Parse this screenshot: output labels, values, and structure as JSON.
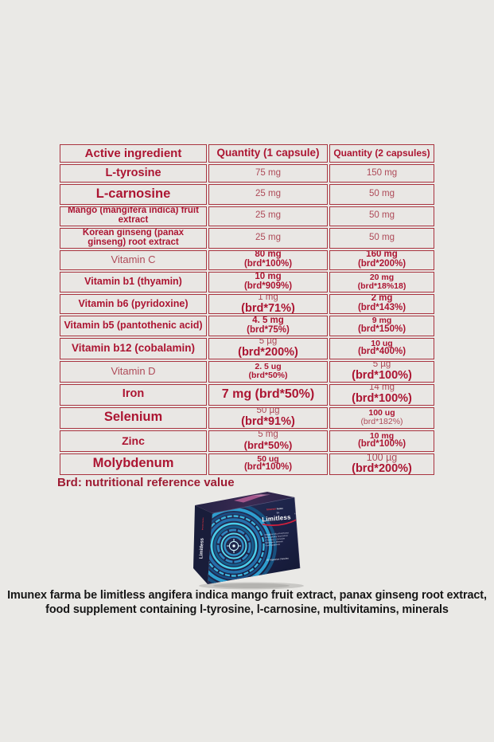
{
  "colors": {
    "table_border_red": "#a93440",
    "table_text_strong": "#ac1532",
    "table_text_soft": "#ae4a58",
    "caption_black": "#161616",
    "box_navy": "#1c2142",
    "box_circle_blue": "#2e9ecf",
    "page_bg": "#eae9e6"
  },
  "table": {
    "headers": [
      "Active ingredient",
      "Quantity (1 capsule)",
      "Quantity (2 capsules)"
    ],
    "rows": [
      {
        "name": "L-tyrosine",
        "name_style": "n-lg",
        "q1": [
          {
            "t": "75 mg",
            "s": "reg-sm"
          }
        ],
        "q2": [
          {
            "t": "150 mg",
            "s": "reg-sm"
          }
        ]
      },
      {
        "name": "L-carnosine",
        "name_style": "n-xl",
        "q1": [
          {
            "t": "25 mg",
            "s": "reg-sm"
          }
        ],
        "q2": [
          {
            "t": "50 mg",
            "s": "reg-sm"
          }
        ]
      },
      {
        "name": "Mango (mangifera indica) fruit extract",
        "name_style": "n-sm",
        "q1": [
          {
            "t": "25 mg",
            "s": "reg-sm"
          }
        ],
        "q2": [
          {
            "t": "50 mg",
            "s": "reg-sm"
          }
        ]
      },
      {
        "name": "Korean ginseng (panax ginseng) root extract",
        "name_style": "n-sm",
        "q1": [
          {
            "t": "25 mg",
            "s": "reg-sm"
          }
        ],
        "q2": [
          {
            "t": "50 mg",
            "s": "reg-sm"
          }
        ]
      },
      {
        "name": "Vitamin C",
        "name_style": "n-reg",
        "q1": [
          {
            "t": "80 mg",
            "s": "bold-sm"
          },
          {
            "t": "(brd*100%)",
            "s": "bold-sm"
          }
        ],
        "q2": [
          {
            "t": "160 mg",
            "s": "bold-sm"
          },
          {
            "t": "(brd*200%)",
            "s": "bold-sm"
          }
        ]
      },
      {
        "name": "Vitamin b1 (thyamin)",
        "name_style": "n-md",
        "q1": [
          {
            "t": "10 mg",
            "s": "bold-sm"
          },
          {
            "t": "(brd*909%)",
            "s": "bold-sm"
          }
        ],
        "q2": [
          {
            "t": "20 mg",
            "s": "bold-xs"
          },
          {
            "t": "(brd*18%18)",
            "s": "bold-xs"
          }
        ]
      },
      {
        "name": "Vitamin b6 (pyridoxine)",
        "name_style": "n-md",
        "q1": [
          {
            "t": "1 mg",
            "s": "reg-sm"
          },
          {
            "t": "(brd*71%)",
            "s": "bold-lg"
          }
        ],
        "q2": [
          {
            "t": "2 mg",
            "s": "bold-sm"
          },
          {
            "t": "(brd*143%)",
            "s": "bold-sm"
          }
        ]
      },
      {
        "name": "Vitamin b5 (pantothenic acid)",
        "name_style": "n-md",
        "q1": [
          {
            "t": "4. 5 mg",
            "s": "bold-sm"
          },
          {
            "t": "(brd*75%)",
            "s": "bold-sm"
          }
        ],
        "q2": [
          {
            "t": "9 mg",
            "s": "bold-xs"
          },
          {
            "t": "(brd*150%)",
            "s": "bold-sm"
          }
        ]
      },
      {
        "name": "Vitamin b12 (cobalamin)",
        "name_style": "n-md2",
        "q1": [
          {
            "t": "5 µg",
            "s": "reg-sm"
          },
          {
            "t": "(brd*200%)",
            "s": "bold-lg"
          }
        ],
        "q2": [
          {
            "t": "10 ug",
            "s": "bold-xs"
          },
          {
            "t": "(brd*400%)",
            "s": "bold-sm"
          }
        ]
      },
      {
        "name": "Vitamin D",
        "name_style": "n-reg",
        "q1": [
          {
            "t": "2. 5 ug",
            "s": "bold-xs"
          },
          {
            "t": "(brd*50%)",
            "s": "bold-xs"
          }
        ],
        "q2": [
          {
            "t": "5 µg",
            "s": "reg-sm"
          },
          {
            "t": "(brd*100%)",
            "s": "bold-lg"
          }
        ]
      },
      {
        "name": "Iron",
        "name_style": "n-lg",
        "q1": [
          {
            "t": "7 mg (brd*50%)",
            "s": "bold-xl"
          }
        ],
        "q2": [
          {
            "t": "14 mg",
            "s": "reg-sm"
          },
          {
            "t": "(brd*100%)",
            "s": "bold-lg"
          }
        ]
      },
      {
        "name": "Selenium",
        "name_style": "n-xl",
        "q1": [
          {
            "t": "50 µg",
            "s": "reg-sm"
          },
          {
            "t": "(brd*91%)",
            "s": "bold-lg"
          }
        ],
        "q2": [
          {
            "t": "100 ug",
            "s": "bold-xs"
          },
          {
            "t": "(brd*182%)",
            "s": "reg-xs"
          }
        ]
      },
      {
        "name": "Zinc",
        "name_style": "n-lg2",
        "q1": [
          {
            "t": "5 mg",
            "s": "reg-sm"
          },
          {
            "t": "(brd*50%)",
            "s": "bold-md"
          }
        ],
        "q2": [
          {
            "t": "10 mg",
            "s": "bold-xs"
          },
          {
            "t": "(brd*100%)",
            "s": "bold-sm"
          }
        ]
      },
      {
        "name": "Molybdenum",
        "name_style": "n-xl",
        "q1": [
          {
            "t": "50 ug",
            "s": "bold-xs"
          },
          {
            "t": "(brd*100%)",
            "s": "bold-sm"
          }
        ],
        "q2": [
          {
            "t": "100 µg",
            "s": "reg-md"
          },
          {
            "t": "(brd*200%)",
            "s": "bold-lg"
          }
        ]
      }
    ]
  },
  "footnote": "Brd: nutritional reference value",
  "product_box": {
    "brand_red": "Imunex",
    "brand_white": " Farma",
    "be": "Be",
    "name": "Limitless",
    "reg_mark": "®",
    "desc_lines": [
      "Mangifera Indica Fruit Extract",
      "Panax ginseng Root Extract",
      "L-Tyrosine, L-Carnosine",
      "Multivitamin, Minerals",
      "Food Supplement"
    ],
    "capsules": "60 Vegetarian Capsules",
    "spine_name": "Limitless",
    "spine_brand": "Imunex Farma"
  },
  "caption": {
    "line1": "Imunex farma be limitless angifera indica mango fruit extract, panax ginseng root extract,",
    "line2": "food supplement containing l-tyrosine, l-carnosine, multivitamins, minerals"
  }
}
